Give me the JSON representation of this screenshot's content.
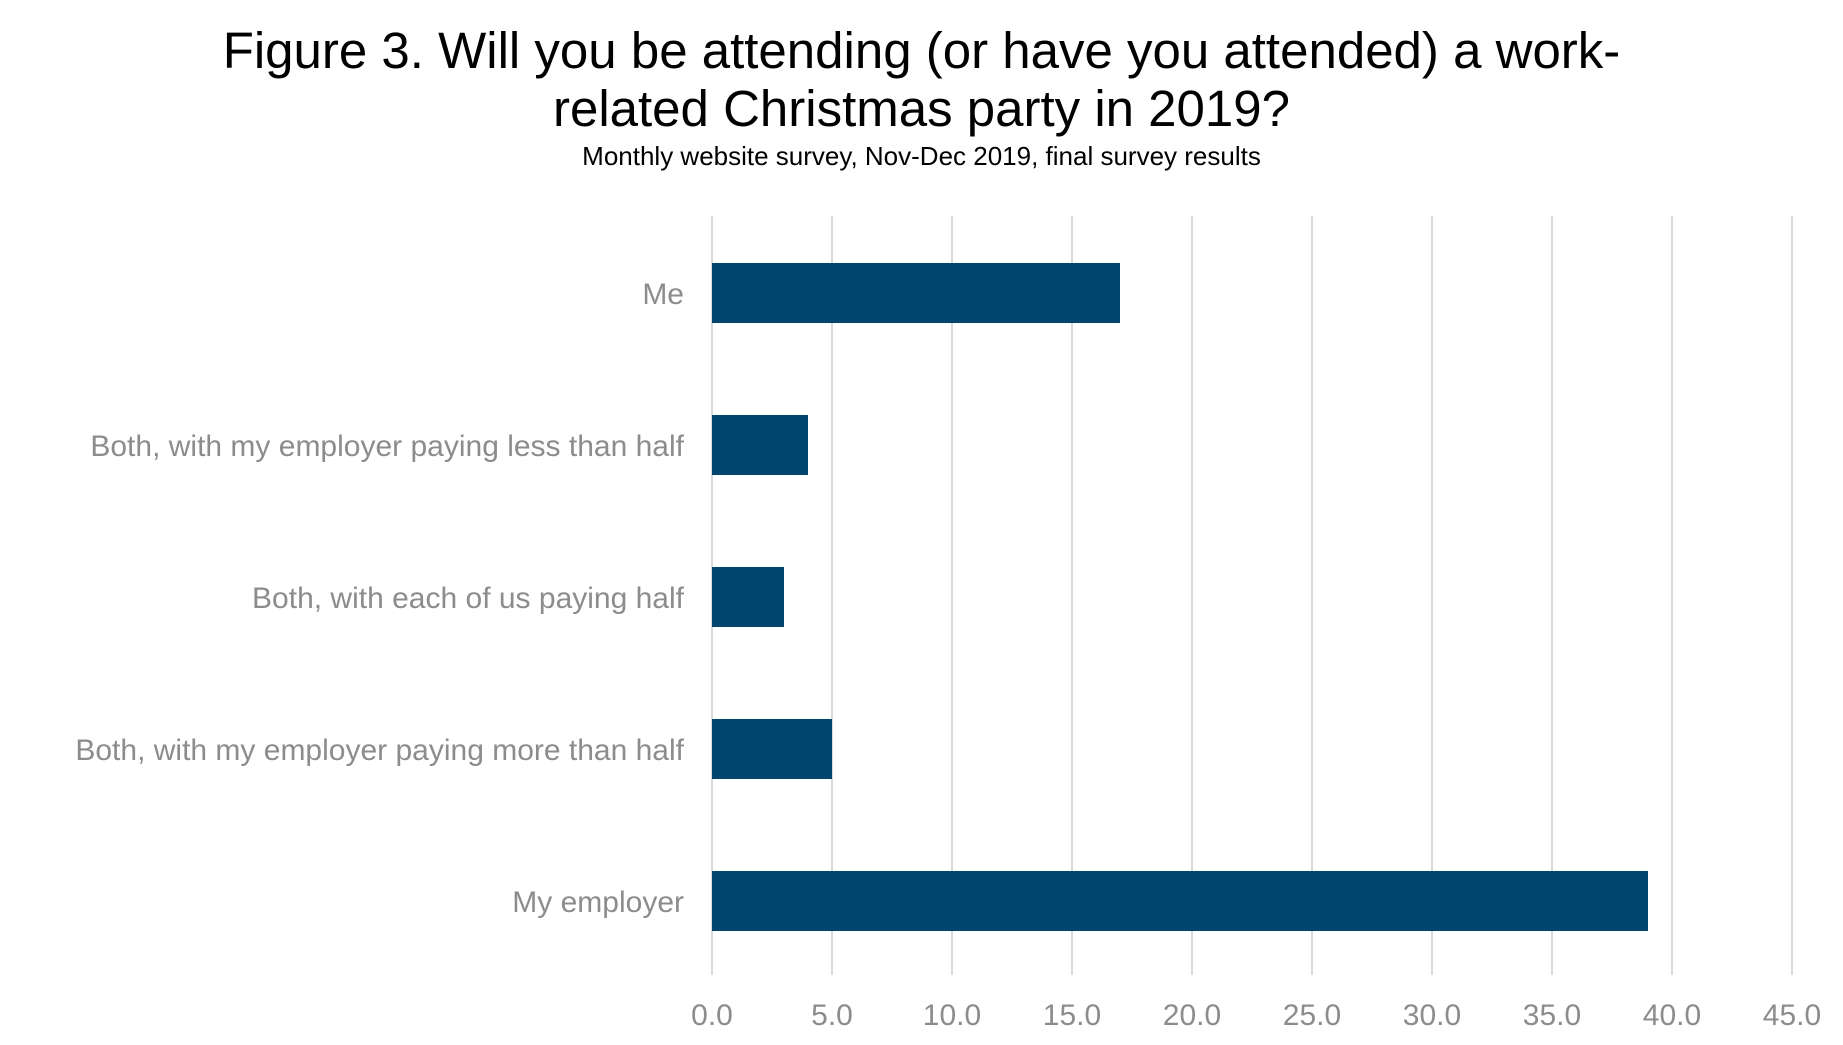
{
  "chart_data": {
    "type": "bar",
    "orientation": "horizontal",
    "title": "Figure 3. Will you be attending (or have you attended) a work-related Christmas party in 2019?",
    "title_lines": [
      "Figure 3. Will you be attending (or have you attended) a work-",
      "related Christmas party in 2019?"
    ],
    "subtitle": "Monthly website survey, Nov-Dec 2019, final survey results",
    "xlabel": "",
    "ylabel": "",
    "categories": [
      "Me",
      "Both, with my employer paying less than half",
      "Both, with each of us paying half",
      "Both, with my employer paying more than half",
      "My employer"
    ],
    "values": [
      17.0,
      4.0,
      3.0,
      5.0,
      39.0
    ],
    "xlim": [
      0,
      45
    ],
    "xticks": [
      0,
      5,
      10,
      15,
      20,
      25,
      30,
      35,
      40,
      45
    ],
    "xtick_labels": [
      "0.0",
      "5.0",
      "10.0",
      "15.0",
      "20.0",
      "25.0",
      "30.0",
      "35.0",
      "40.0",
      "45.0"
    ],
    "grid": "vertical",
    "legend": "none",
    "colors": {
      "bar": "#00456b",
      "grid": "#d9d9d9",
      "tick_label": "#8c8c8c",
      "title": "#000000"
    }
  }
}
